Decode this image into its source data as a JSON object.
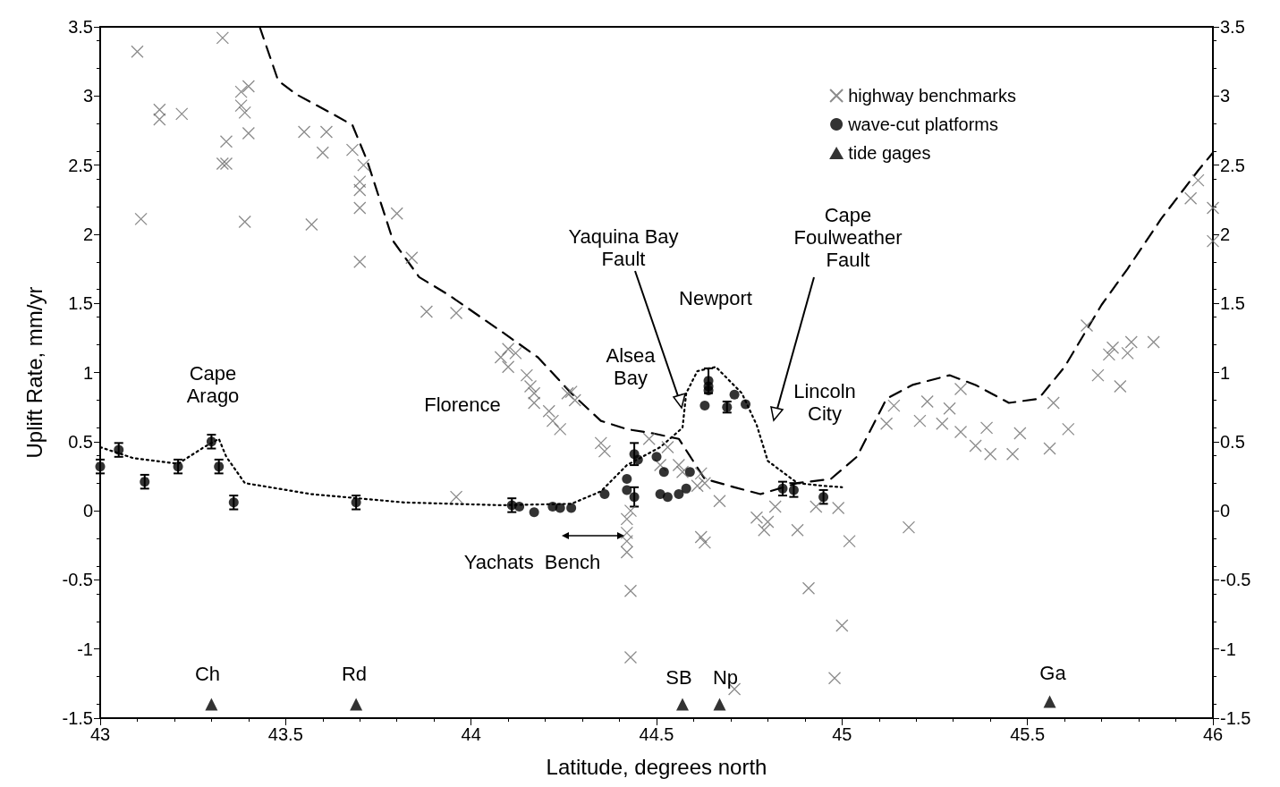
{
  "chart_data": {
    "type": "scatter",
    "xlabel": "Latitude, degrees north",
    "ylabel": "Uplift Rate, mm/yr",
    "xlim": [
      43,
      46
    ],
    "xticks": [
      43,
      43.5,
      44,
      44.5,
      45,
      45.5,
      46
    ],
    "ylim": [
      -1.5,
      3.5
    ],
    "yticks": [
      -1.5,
      -1,
      -0.5,
      0,
      0.5,
      1,
      1.5,
      2,
      2.5,
      3,
      3.5
    ],
    "y2lim": [
      -1.5,
      3.5
    ],
    "y2ticks": [
      -1.5,
      -1,
      -0.5,
      0,
      0.5,
      1,
      1.5,
      2,
      2.5,
      3,
      3.5
    ],
    "grid": false,
    "legend": "top right",
    "series": [
      {
        "name": "highway benchmarks",
        "marker": "cross",
        "color": "#6e6e6e",
        "x": [
          43.1,
          43.33,
          43.16,
          43.16,
          43.22,
          43.11,
          43.33,
          43.34,
          43.34,
          43.38,
          43.4,
          43.38,
          43.39,
          43.4,
          43.39,
          43.55,
          43.61,
          43.6,
          43.57,
          43.68,
          43.71,
          43.7,
          43.7,
          43.7,
          43.7,
          43.8,
          43.84,
          43.88,
          43.96,
          43.96,
          44.08,
          44.1,
          44.12,
          44.1,
          44.15,
          44.16,
          44.17,
          44.17,
          44.21,
          44.22,
          44.24,
          44.26,
          44.27,
          44.28,
          44.35,
          44.36,
          44.42,
          44.42,
          44.42,
          44.42,
          44.43,
          44.43,
          44.43,
          44.48,
          44.53,
          44.51,
          44.56,
          44.57,
          44.61,
          44.62,
          44.63,
          44.62,
          44.63,
          44.67,
          44.71,
          44.77,
          44.8,
          44.79,
          44.82,
          44.88,
          44.93,
          44.99,
          45.02,
          44.91,
          45.0,
          44.98,
          45.18,
          45.12,
          45.14,
          45.21,
          45.23,
          45.29,
          45.27,
          45.32,
          45.32,
          45.36,
          45.39,
          45.4,
          45.46,
          45.48,
          45.57,
          45.56,
          45.61,
          45.66,
          45.69,
          45.72,
          45.73,
          45.75,
          45.77,
          45.78,
          45.84,
          45.94,
          45.96,
          46.0,
          46.0
        ],
        "values": [
          3.32,
          3.42,
          2.9,
          2.83,
          2.87,
          2.11,
          2.51,
          2.51,
          2.67,
          3.03,
          3.07,
          2.93,
          2.88,
          2.73,
          2.09,
          2.74,
          2.74,
          2.59,
          2.07,
          2.61,
          2.5,
          2.38,
          2.32,
          2.19,
          1.8,
          2.15,
          1.83,
          1.44,
          1.43,
          0.1,
          1.11,
          1.17,
          1.14,
          1.04,
          0.98,
          0.9,
          0.85,
          0.78,
          0.72,
          0.65,
          0.59,
          0.85,
          0.86,
          0.8,
          0.49,
          0.43,
          -0.06,
          -0.16,
          -0.22,
          -0.3,
          -0.58,
          -1.06,
          0.0,
          0.52,
          0.46,
          0.33,
          0.33,
          0.28,
          0.18,
          0.27,
          0.2,
          -0.19,
          -0.23,
          0.07,
          -1.29,
          -0.05,
          -0.08,
          -0.14,
          0.03,
          -0.14,
          0.03,
          0.02,
          -0.22,
          -0.56,
          -0.83,
          -1.21,
          -0.12,
          0.63,
          0.76,
          0.65,
          0.79,
          0.74,
          0.63,
          0.88,
          0.57,
          0.47,
          0.6,
          0.41,
          0.41,
          0.56,
          0.78,
          0.45,
          0.59,
          1.34,
          0.98,
          1.13,
          1.18,
          0.9,
          1.14,
          1.22,
          1.22,
          2.26,
          2.39,
          2.19,
          1.95
        ]
      },
      {
        "name": "wave-cut platforms",
        "marker": "circle",
        "color": "#000000",
        "x": [
          43.0,
          43.05,
          43.12,
          43.21,
          43.3,
          43.32,
          43.36,
          43.69,
          44.11,
          44.13,
          44.17,
          44.22,
          44.24,
          44.27,
          44.36,
          44.42,
          44.42,
          44.44,
          44.45,
          44.44,
          44.5,
          44.52,
          44.51,
          44.53,
          44.56,
          44.58,
          44.59,
          44.63,
          44.64,
          44.64,
          44.64,
          44.69,
          44.71,
          44.74,
          44.84,
          44.87,
          44.95
        ],
        "values": [
          0.32,
          0.44,
          0.21,
          0.32,
          0.5,
          0.32,
          0.06,
          0.06,
          0.04,
          0.03,
          -0.01,
          0.03,
          0.02,
          0.02,
          0.12,
          0.23,
          0.15,
          0.41,
          0.37,
          0.1,
          0.39,
          0.28,
          0.12,
          0.1,
          0.12,
          0.16,
          0.28,
          0.76,
          0.94,
          0.9,
          0.87,
          0.75,
          0.84,
          0.77,
          0.16,
          0.15,
          0.1
        ],
        "errors": [
          0.05,
          0.05,
          0.05,
          0.05,
          0.05,
          0.05,
          0.05,
          0.05,
          0.05,
          null,
          null,
          null,
          null,
          null,
          null,
          null,
          null,
          0.08,
          null,
          0.07,
          null,
          null,
          null,
          null,
          null,
          null,
          null,
          null,
          0.09,
          null,
          null,
          0.04,
          null,
          null,
          0.05,
          0.05,
          0.05
        ]
      },
      {
        "name": "tide gages",
        "marker": "triangle",
        "color": "#000000",
        "x": [
          43.3,
          43.69,
          44.57,
          44.67,
          45.56
        ],
        "values": [
          -1.4,
          -1.4,
          -1.4,
          -1.4,
          -1.38
        ]
      },
      {
        "type": "line",
        "marker": "none",
        "line_style": "dashed",
        "color": "#000000",
        "x": [
          43.43,
          43.48,
          43.53,
          43.62,
          43.68,
          43.72,
          43.79,
          43.86,
          43.94,
          44.08,
          44.18,
          44.27,
          44.35,
          44.42,
          44.49,
          44.56,
          44.63,
          44.71,
          44.78,
          44.88,
          44.97,
          45.04,
          45.12,
          45.19,
          45.29,
          45.36,
          45.45,
          45.53,
          45.6,
          45.7,
          45.77,
          45.86,
          45.96,
          46.0
        ],
        "values": [
          3.5,
          3.11,
          3.01,
          2.88,
          2.79,
          2.53,
          1.95,
          1.69,
          1.56,
          1.3,
          1.11,
          0.85,
          0.65,
          0.59,
          0.56,
          0.52,
          0.23,
          0.17,
          0.12,
          0.2,
          0.23,
          0.39,
          0.81,
          0.91,
          0.98,
          0.91,
          0.78,
          0.81,
          1.04,
          1.49,
          1.75,
          2.11,
          2.46,
          2.59
        ]
      },
      {
        "type": "line",
        "marker": "none",
        "line_style": "dotted",
        "color": "#000000",
        "x": [
          43.0,
          43.09,
          43.21,
          43.28,
          43.32,
          43.34,
          43.39,
          43.57,
          43.82,
          44.08,
          44.27,
          44.35,
          44.42,
          44.51,
          44.57,
          44.58,
          44.61,
          44.66,
          44.73,
          44.77,
          44.8,
          44.88,
          44.95,
          45.0
        ],
        "values": [
          0.46,
          0.38,
          0.34,
          0.46,
          0.52,
          0.39,
          0.2,
          0.12,
          0.06,
          0.04,
          0.05,
          0.14,
          0.33,
          0.46,
          0.6,
          0.85,
          1.01,
          1.04,
          0.85,
          0.62,
          0.36,
          0.2,
          0.18,
          0.17
        ]
      }
    ],
    "annotations": [
      "Cape\nArago",
      "Florence",
      "Yachats  Bench",
      "Alsea\nBay",
      "Yaquina Bay\nFault",
      "Newport",
      "Cape\nFoulweather\nFault",
      "Lincoln\nCity",
      "Ch",
      "Rd",
      "SB",
      "Np",
      "Ga"
    ]
  }
}
